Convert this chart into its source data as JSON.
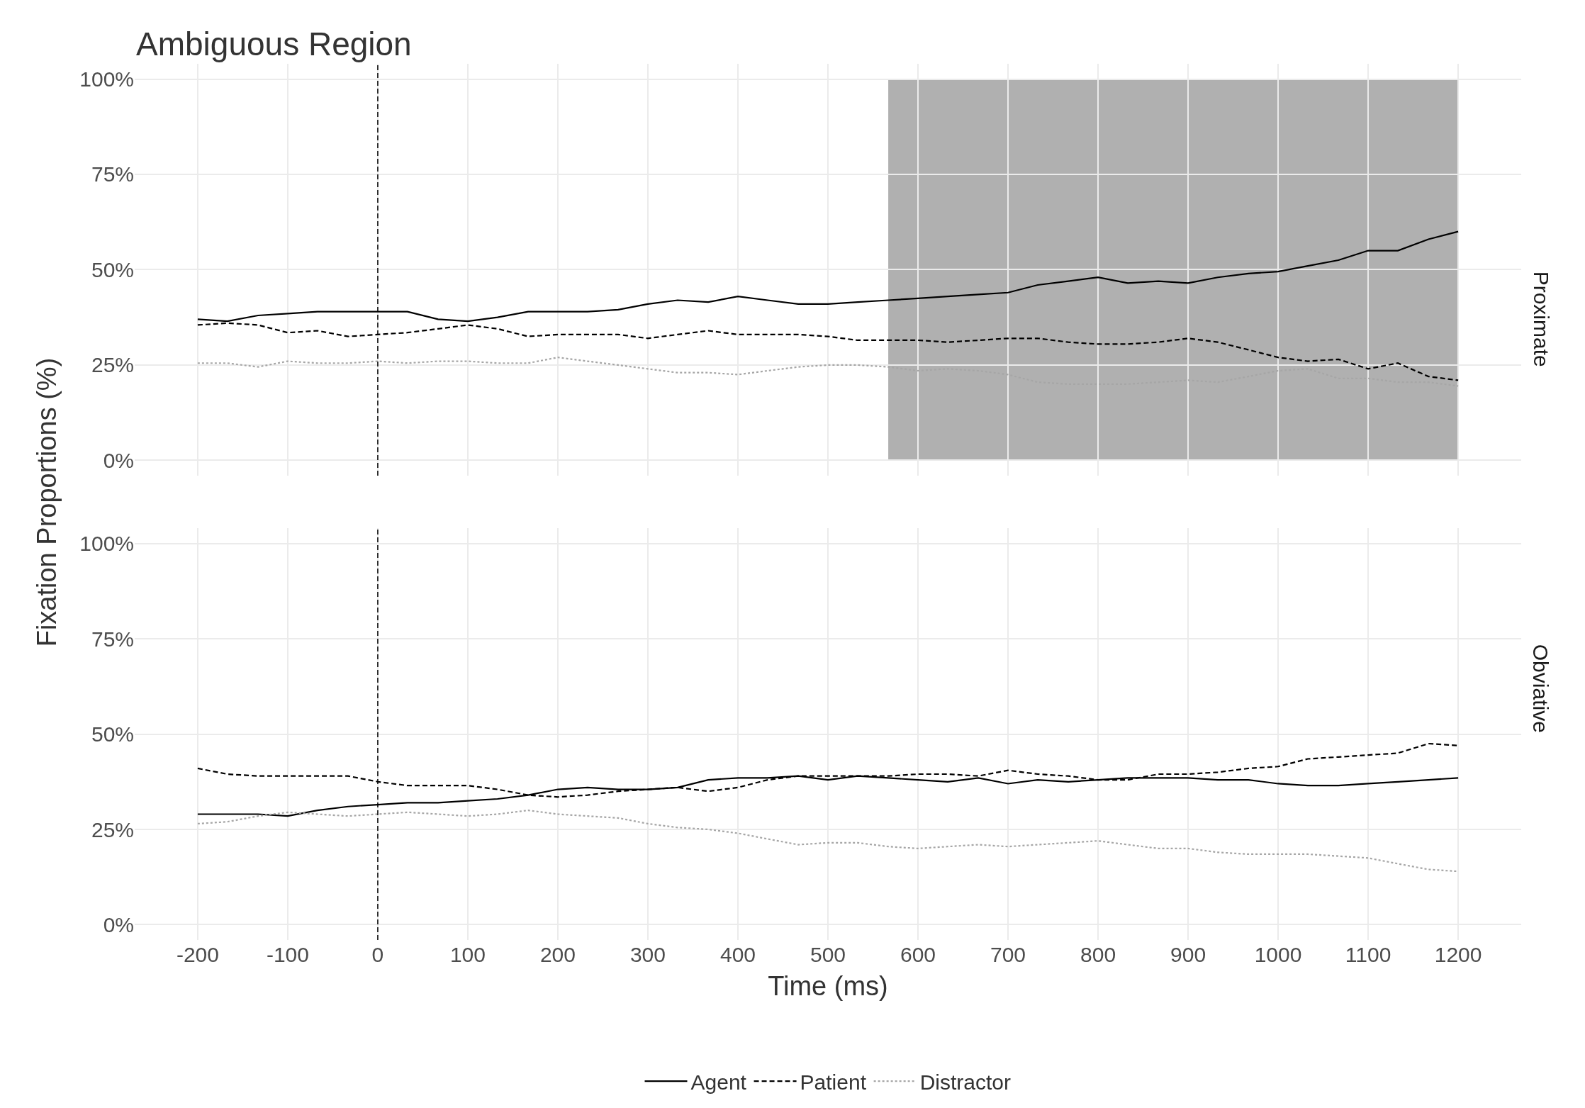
{
  "chart_data": [
    {
      "type": "line",
      "title": "Ambiguous Region",
      "ylabel": "Fixation Proportions (%)",
      "annotations": [
        "Proximate"
      ],
      "x": [
        -200,
        -167,
        -133,
        -100,
        -67,
        -33,
        0,
        33,
        67,
        100,
        133,
        167,
        200,
        233,
        267,
        300,
        333,
        367,
        400,
        433,
        467,
        500,
        533,
        567,
        600,
        633,
        667,
        700,
        733,
        767,
        800,
        833,
        867,
        900,
        933,
        967,
        1000,
        1033,
        1067,
        1100,
        1133,
        1167,
        1200
      ],
      "series": [
        {
          "name": "Agent",
          "color": "#000000",
          "line_style": "solid",
          "values": [
            37,
            36.5,
            38,
            38.5,
            39,
            39,
            39,
            39,
            37,
            36.5,
            37.5,
            39,
            39,
            39,
            39.5,
            41,
            42,
            41.5,
            43,
            42,
            41,
            41,
            41.5,
            42,
            42.5,
            43,
            43.5,
            44,
            46,
            47,
            48,
            46.5,
            47,
            46.5,
            48,
            49,
            49.5,
            51,
            52.5,
            55,
            55,
            58,
            60
          ]
        },
        {
          "name": "Patient",
          "color": "#000000",
          "line_style": "dashed",
          "values": [
            35.5,
            36,
            35.5,
            33.5,
            34,
            32.5,
            33,
            33.5,
            34.5,
            35.5,
            34.5,
            32.5,
            33,
            33,
            33,
            32,
            33,
            34,
            33,
            33,
            33,
            32.5,
            31.5,
            31.5,
            31.5,
            31,
            31.5,
            32,
            32,
            31,
            30.5,
            30.5,
            31,
            32,
            31,
            29,
            27,
            26,
            26.5,
            24,
            25.5,
            22,
            21
          ]
        },
        {
          "name": "Distractor",
          "color": "#a6a6a6",
          "line_style": "dotted",
          "values": [
            25.5,
            25.5,
            24.5,
            26,
            25.5,
            25.5,
            26,
            25.5,
            26,
            26,
            25.5,
            25.5,
            27,
            26,
            25,
            24,
            23,
            23,
            22.5,
            23.5,
            24.5,
            25,
            25,
            24.5,
            23.5,
            24,
            23.5,
            22.5,
            20.5,
            20,
            20,
            20,
            20.5,
            21,
            20.5,
            22,
            23.5,
            24,
            21.5,
            21.5,
            20.5,
            20.5,
            19.5
          ]
        }
      ],
      "xlim": [
        -270,
        1270
      ],
      "xticks": [
        -200,
        -100,
        0,
        100,
        200,
        300,
        400,
        500,
        600,
        700,
        800,
        900,
        1000,
        1100,
        1200
      ],
      "ylim": [
        -4,
        104
      ],
      "yticks": [
        {
          "value": 0,
          "label": "0%"
        },
        {
          "value": 25,
          "label": "25%"
        },
        {
          "value": 50,
          "label": "50%"
        },
        {
          "value": 75,
          "label": "75%"
        },
        {
          "value": 100,
          "label": "100%"
        }
      ],
      "ref_lines": [
        {
          "axis": "x",
          "value": 0,
          "label": null,
          "color": "#000000",
          "line_style": "dashed"
        }
      ],
      "bands": [
        {
          "axis": "x",
          "from": 567,
          "to": 1200,
          "label": null,
          "color": "#b0b0b0"
        }
      ],
      "grid": true,
      "legend": "bottom",
      "tick_labels": "y"
    },
    {
      "type": "line",
      "xlabel": "Time (ms)",
      "annotations": [
        "Obviative"
      ],
      "x": [
        -200,
        -167,
        -133,
        -100,
        -67,
        -33,
        0,
        33,
        67,
        100,
        133,
        167,
        200,
        233,
        267,
        300,
        333,
        367,
        400,
        433,
        467,
        500,
        533,
        567,
        600,
        633,
        667,
        700,
        733,
        767,
        800,
        833,
        867,
        900,
        933,
        967,
        1000,
        1033,
        1067,
        1100,
        1133,
        1167,
        1200
      ],
      "series": [
        {
          "color": "#000000",
          "line_style": "solid",
          "values": [
            29,
            29,
            29,
            28.5,
            30,
            31,
            31.5,
            32,
            32,
            32.5,
            33,
            34,
            35.5,
            36,
            35.5,
            35.5,
            36,
            38,
            38.5,
            38.5,
            39,
            38,
            39,
            38.5,
            38,
            37.5,
            38.5,
            37,
            38,
            37.5,
            38,
            38.5,
            38.5,
            38.5,
            38,
            38,
            37,
            36.5,
            36.5,
            37,
            37.5,
            38,
            38.5
          ]
        },
        {
          "color": "#000000",
          "line_style": "dashed",
          "values": [
            41,
            39.5,
            39,
            39,
            39,
            39,
            37.5,
            36.5,
            36.5,
            36.5,
            35.5,
            34,
            33.5,
            34,
            35,
            35.5,
            36,
            35,
            36,
            38,
            39,
            39,
            39,
            39,
            39.5,
            39.5,
            39,
            40.5,
            39.5,
            39,
            38,
            38,
            39.5,
            39.5,
            40,
            41,
            41.5,
            43.5,
            44,
            44.5,
            45,
            47.5,
            47
          ]
        },
        {
          "color": "#a6a6a6",
          "line_style": "dotted",
          "values": [
            26.5,
            27,
            28.5,
            29.5,
            29,
            28.5,
            29,
            29.5,
            29,
            28.5,
            29,
            30,
            29,
            28.5,
            28,
            26.5,
            25.5,
            25,
            24,
            22.5,
            21,
            21.5,
            21.5,
            20.5,
            20,
            20.5,
            21,
            20.5,
            21,
            21.5,
            22,
            21,
            20,
            20,
            19,
            18.5,
            18.5,
            18.5,
            18,
            17.5,
            16,
            14.5,
            14
          ]
        }
      ],
      "xlim": [
        -270,
        1270
      ],
      "xticks": [
        -200,
        -100,
        0,
        100,
        200,
        300,
        400,
        500,
        600,
        700,
        800,
        900,
        1000,
        1100,
        1200
      ],
      "ylim": [
        -4,
        104
      ],
      "yticks": [
        {
          "value": 0,
          "label": "0%"
        },
        {
          "value": 25,
          "label": "25%"
        },
        {
          "value": 50,
          "label": "50%"
        },
        {
          "value": 75,
          "label": "75%"
        },
        {
          "value": 100,
          "label": "100%"
        }
      ],
      "ref_lines": [
        {
          "axis": "x",
          "value": 0,
          "label": null,
          "color": "#000000",
          "line_style": "dashed"
        }
      ],
      "grid": true
    }
  ]
}
